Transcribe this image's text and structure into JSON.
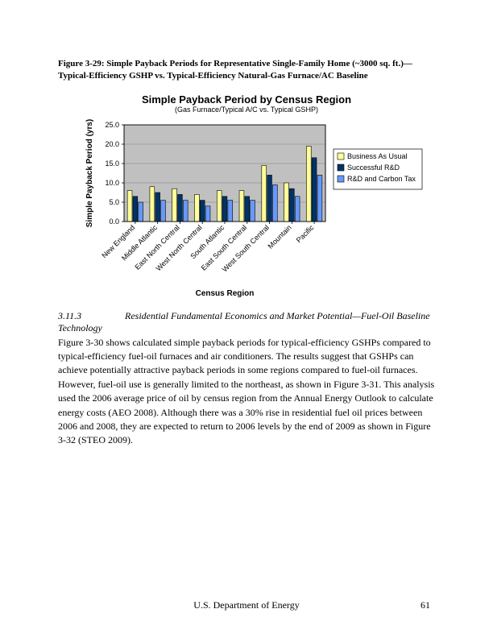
{
  "figure_caption": "Figure 3-29: Simple Payback Periods for Representative Single-Family Home (~3000 sq. ft.)—Typical-Efficiency GSHP vs. Typical-Efficiency Natural-Gas Furnace/AC Baseline",
  "chart": {
    "type": "bar",
    "title": "Simple Payback Period by Census Region",
    "subtitle": "(Gas Furnace/Typical A/C vs. Typical GSHP)",
    "y_axis": {
      "title": "Simple Payback Period (yrs)",
      "min": 0.0,
      "max": 25.0,
      "step": 5.0,
      "ticks": [
        "0.0",
        "5.0",
        "10.0",
        "15.0",
        "20.0",
        "25.0"
      ]
    },
    "x_axis": {
      "title": "Census Region",
      "categories": [
        "New England",
        "Middle Atlantic",
        "East North Central",
        "West North Central",
        "South Atlantic",
        "East South Central",
        "West South Central",
        "Mountain",
        "Pacific"
      ]
    },
    "series": [
      {
        "name": "Business As Usual",
        "color": "#FFFF99",
        "border": "#000000",
        "values": [
          8.0,
          9.0,
          8.5,
          7.0,
          8.0,
          8.0,
          14.5,
          10.0,
          19.5
        ]
      },
      {
        "name": "Successful R&D",
        "color": "#003366",
        "border": "#000000",
        "values": [
          6.5,
          7.5,
          7.0,
          5.5,
          6.5,
          6.5,
          12.0,
          8.5,
          16.5
        ]
      },
      {
        "name": "R&D and Carbon Tax",
        "color": "#6699FF",
        "border": "#000000",
        "values": [
          5.0,
          5.5,
          5.5,
          4.0,
          5.5,
          5.5,
          9.5,
          6.5,
          12.0
        ]
      }
    ],
    "plot_bg": "#C0C0C0",
    "grid_color": "#808080",
    "border_color": "#000000"
  },
  "section": {
    "number": "3.11.3",
    "title": "Residential Fundamental Economics and Market Potential—Fuel-Oil Baseline Technology"
  },
  "paragraph": "Figure 3-30 shows calculated simple payback periods for typical-efficiency GSHPs compared to typical-efficiency fuel-oil furnaces and air conditioners.  The results suggest that GSHPs can achieve potentially attractive payback periods in some regions compared to fuel-oil furnaces. However, fuel-oil use is generally limited to the northeast, as shown in Figure 3-31. This analysis used the 2006 average price of oil by census region from the Annual Energy Outlook to calculate energy costs (AEO 2008). Although there was a 30% rise in residential fuel oil prices between 2006 and 2008, they are expected to return to 2006 levels by the end of 2009 as shown in Figure 3-32 (STEO 2009).",
  "footer": {
    "center": "U.S. Department of Energy",
    "page": "61"
  }
}
